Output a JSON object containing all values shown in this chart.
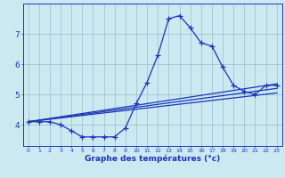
{
  "xlabel": "Graphe des températures (°c)",
  "x_hours": [
    0,
    1,
    2,
    3,
    4,
    5,
    6,
    7,
    8,
    9,
    10,
    11,
    12,
    13,
    14,
    15,
    16,
    17,
    18,
    19,
    20,
    21,
    22,
    23
  ],
  "temp": [
    4.1,
    4.1,
    4.1,
    4.0,
    3.8,
    3.6,
    3.6,
    3.6,
    3.6,
    3.9,
    4.7,
    5.4,
    6.3,
    7.5,
    7.6,
    7.2,
    6.7,
    6.6,
    5.9,
    5.3,
    5.1,
    5.0,
    5.3,
    5.3
  ],
  "linear_lines": [
    {
      "x0": 0,
      "x1": 23,
      "y0": 4.1,
      "y1": 5.05
    },
    {
      "x0": 0,
      "x1": 23,
      "y0": 4.1,
      "y1": 5.2
    },
    {
      "x0": 0,
      "x1": 23,
      "y0": 4.1,
      "y1": 5.35
    }
  ],
  "ylim": [
    3.3,
    8.0
  ],
  "xlim": [
    -0.5,
    23.5
  ],
  "yticks": [
    4,
    5,
    6,
    7
  ],
  "bg_color": "#cce8f0",
  "grid_color": "#9bbfcc",
  "line_color": "#1a35b8",
  "line_width": 0.9,
  "marker": "+",
  "marker_size": 4,
  "xlabel_fontsize": 6.5,
  "tick_fontsize_x": 4.5,
  "tick_fontsize_y": 6.5
}
